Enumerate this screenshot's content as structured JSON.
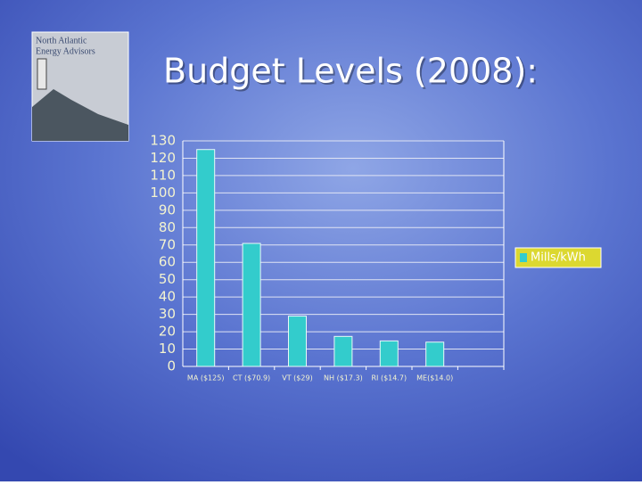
{
  "logo": {
    "line1": "North Atlantic",
    "line2": "Energy Advisors"
  },
  "chart_data": {
    "type": "bar",
    "title": "Budget Levels (2008):",
    "categories": [
      "MA ($125)",
      "CT ($70.9)",
      "VT ($29)",
      "NH ($17.3)",
      "RI ($14.7)",
      "ME($14.0)"
    ],
    "series": [
      {
        "name": "Mills/kWh",
        "color": "#33cccc",
        "values": [
          125,
          70.9,
          29,
          17.3,
          14.7,
          14.0
        ]
      }
    ],
    "ylim": [
      0,
      130
    ],
    "yticks": [
      0,
      10,
      20,
      30,
      40,
      50,
      60,
      70,
      80,
      90,
      100,
      110,
      120,
      130
    ],
    "grid": true,
    "legend": "right"
  }
}
